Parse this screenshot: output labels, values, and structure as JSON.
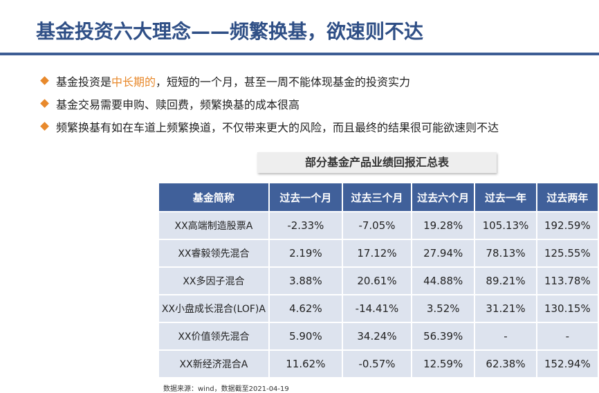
{
  "header": {
    "title": "基金投资六大理念——频繁换基，欲速则不达"
  },
  "bullets": [
    {
      "parts": [
        "基金投资是",
        "中长期的",
        "，短短的一个月，甚至一周不能体现基金的投资实力"
      ]
    },
    {
      "parts": [
        "基金交易需要申购、赎回费，频繁换基的成本很高"
      ]
    },
    {
      "parts": [
        "频繁换基有如在车道上频繁换道，不仅带来更大的风险，而且最终的结果很可能欲速则不达"
      ]
    }
  ],
  "table": {
    "caption": "部分基金产品业绩回报汇总表",
    "columns": [
      "基金简称",
      "过去一个月",
      "过去三个月",
      "过去六个月",
      "过去一年",
      "过去两年"
    ],
    "rows": [
      [
        "XX高端制造股票A",
        "-2.33%",
        "-7.05%",
        "19.28%",
        "105.13%",
        "192.59%"
      ],
      [
        "XX睿毅领先混合",
        "2.19%",
        "17.12%",
        "27.94%",
        "78.13%",
        "125.55%"
      ],
      [
        "XX多因子混合",
        "3.88%",
        "20.61%",
        "44.88%",
        "89.21%",
        "113.78%"
      ],
      [
        "XX小盘成长混合(LOF)A",
        "4.62%",
        "-14.41%",
        "3.52%",
        "31.21%",
        "130.15%"
      ],
      [
        "XX价值领先混合",
        "5.90%",
        "34.24%",
        "56.39%",
        "-",
        "-"
      ],
      [
        "XX新经济混合A",
        "11.62%",
        "-0.57%",
        "12.59%",
        "62.38%",
        "152.94%"
      ]
    ]
  },
  "footer": {
    "source": "数据来源：wind，数据截至2021-04-19"
  }
}
